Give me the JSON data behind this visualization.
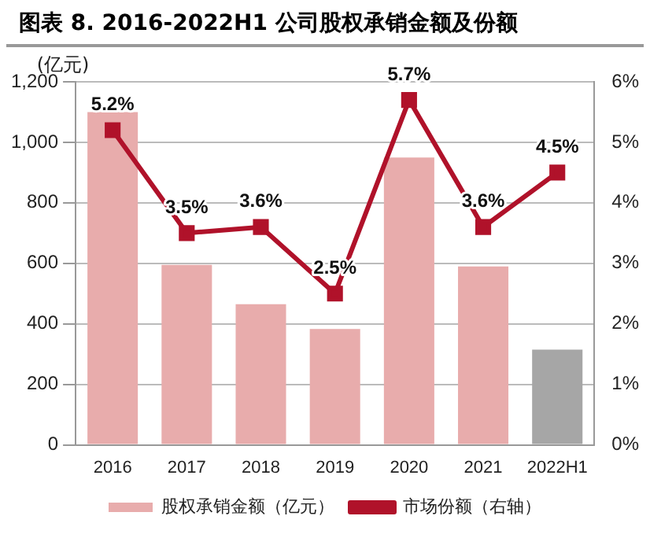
{
  "chart_data": {
    "type": "bar",
    "title": "图表 8. 2016-2022H1 公司股权承销金额及份额",
    "ylabel": "(亿元)",
    "categories": [
      "2016",
      "2017",
      "2018",
      "2019",
      "2020",
      "2021",
      "2022H1"
    ],
    "series": [
      {
        "name": "股权承销金额（亿元）",
        "color": "#e8acac",
        "colors": [
          "#e8acac",
          "#e8acac",
          "#e8acac",
          "#e8acac",
          "#e8acac",
          "#e8acac",
          "#a6a6a6"
        ],
        "values": [
          1100,
          595,
          465,
          383,
          950,
          590,
          315
        ]
      },
      {
        "name": "市场份额（右轴）",
        "type": "line",
        "axis": "y2",
        "color": "#b0122a",
        "marker": "square",
        "values": [
          5.2,
          3.5,
          3.6,
          2.5,
          5.7,
          3.6,
          4.5
        ],
        "value_labels": [
          "5.2%",
          "3.5%",
          "3.6%",
          "2.5%",
          "5.7%",
          "3.6%",
          "4.5%"
        ]
      }
    ],
    "ylim": [
      0,
      1200
    ],
    "yticks": [
      0,
      200,
      400,
      600,
      800,
      {
        "value": 1000,
        "label": "1,000"
      },
      {
        "value": 1200,
        "label": "1,200"
      }
    ],
    "y2lim": [
      0,
      6
    ],
    "y2ticks": [
      {
        "value": 0,
        "label": "0%"
      },
      {
        "value": 1,
        "label": "1%"
      },
      {
        "value": 2,
        "label": "2%"
      },
      {
        "value": 3,
        "label": "3%"
      },
      {
        "value": 4,
        "label": "4%"
      },
      {
        "value": 5,
        "label": "5%"
      },
      {
        "value": 6,
        "label": "6%"
      }
    ],
    "grid": "y",
    "legend": "bottom"
  }
}
